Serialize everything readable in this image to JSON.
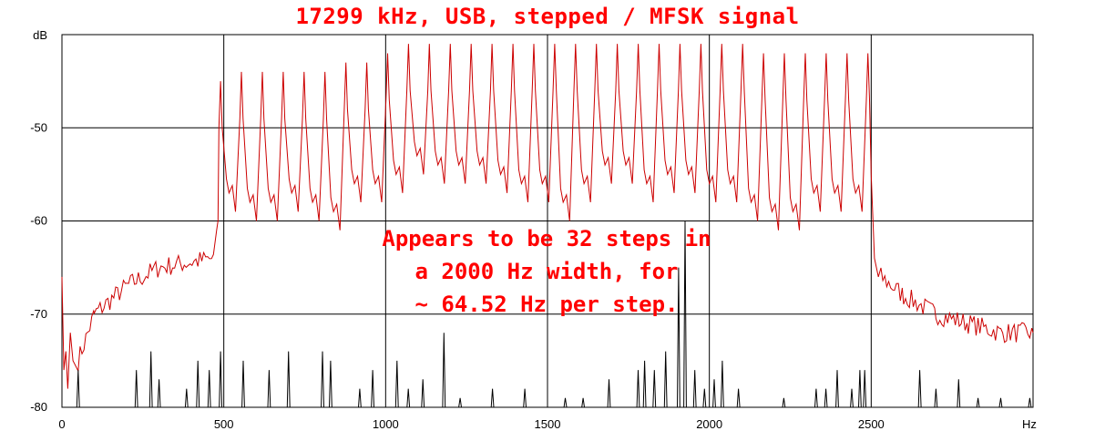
{
  "chart_data": {
    "type": "line",
    "title": "17299 kHz, USB, stepped / MFSK signal",
    "xlabel": "Hz",
    "ylabel": "dB",
    "xlim": [
      0,
      3000
    ],
    "ylim": [
      -80,
      -40
    ],
    "x_ticks": [
      "0",
      "500",
      "1000",
      "1500",
      "2000",
      "2500"
    ],
    "x_tick_values": [
      0,
      500,
      1000,
      1500,
      2000,
      2500
    ],
    "y_ticks": [
      "-50",
      "-60",
      "-70",
      "-80"
    ],
    "y_tick_values": [
      -50,
      -60,
      -70,
      -80
    ],
    "grid": true,
    "annotation": [
      "Appears to be 32 steps in",
      "a 2000 Hz width, for",
      "~ 64.52 Hz per step."
    ],
    "signal_band_hz": [
      490,
      2490
    ],
    "steps": 32,
    "step_spacing_hz": 64.52,
    "series": [
      {
        "color": "#cc0000",
        "peak_hz": [
          490,
          554.5,
          619,
          683.5,
          748,
          812.6,
          877.1,
          941.6,
          1006.1,
          1070.6,
          1135.1,
          1199.6,
          1264.1,
          1328.7,
          1393.2,
          1457.7,
          1522.2,
          1586.7,
          1651.2,
          1715.7,
          1780.3,
          1844.8,
          1909.3,
          1973.8,
          2038.3,
          2102.8,
          2167.3,
          2231.8,
          2296.3,
          2360.9,
          2425.4,
          2489.9
        ],
        "peak_db": [
          -45,
          -44,
          -44,
          -44,
          -44,
          -44,
          -43,
          -43,
          -42,
          -41,
          -41,
          -41,
          -41,
          -41,
          -41,
          -41,
          -41,
          -41,
          -41,
          -41,
          -41,
          -41,
          -41,
          -41,
          -41,
          -41,
          -42,
          -42,
          -42,
          -42,
          -42,
          -42
        ],
        "trough_db": [
          -57,
          -58,
          -58,
          -57,
          -58,
          -59,
          -56,
          -56,
          -55,
          -53,
          -54,
          -54,
          -54,
          -55,
          -56,
          -56,
          -58,
          -56,
          -54,
          -54,
          -56,
          -55,
          -55,
          -56,
          -56,
          -58,
          -59,
          -59,
          -57,
          -57,
          -57
        ],
        "baseline_left": [
          [
            0,
            -76
          ],
          [
            50,
            -75
          ],
          [
            100,
            -70
          ],
          [
            200,
            -67
          ],
          [
            300,
            -65
          ],
          [
            470,
            -64
          ]
        ],
        "baseline_right": [
          [
            2530,
            -66
          ],
          [
            2600,
            -68
          ],
          [
            2700,
            -70
          ],
          [
            2800,
            -71
          ],
          [
            2900,
            -72
          ],
          [
            3000,
            -72
          ]
        ]
      },
      {
        "color": "#000000",
        "noise_peaks": [
          [
            50,
            -76
          ],
          [
            230,
            -76
          ],
          [
            275,
            -74
          ],
          [
            300,
            -77
          ],
          [
            385,
            -78
          ],
          [
            420,
            -75
          ],
          [
            455,
            -76
          ],
          [
            490,
            -74
          ],
          [
            560,
            -75
          ],
          [
            640,
            -76
          ],
          [
            700,
            -74
          ],
          [
            805,
            -74
          ],
          [
            830,
            -75
          ],
          [
            920,
            -78
          ],
          [
            960,
            -76
          ],
          [
            1035,
            -75
          ],
          [
            1070,
            -78
          ],
          [
            1115,
            -77
          ],
          [
            1180,
            -72
          ],
          [
            1230,
            -79
          ],
          [
            1330,
            -78
          ],
          [
            1430,
            -78
          ],
          [
            1555,
            -79
          ],
          [
            1610,
            -79
          ],
          [
            1690,
            -77
          ],
          [
            1780,
            -76
          ],
          [
            1800,
            -75
          ],
          [
            1830,
            -76
          ],
          [
            1865,
            -74
          ],
          [
            1905,
            -65
          ],
          [
            1925,
            -60
          ],
          [
            1955,
            -76
          ],
          [
            1985,
            -78
          ],
          [
            2015,
            -77
          ],
          [
            2040,
            -75
          ],
          [
            2090,
            -78
          ],
          [
            2230,
            -79
          ],
          [
            2330,
            -78
          ],
          [
            2360,
            -78
          ],
          [
            2395,
            -76
          ],
          [
            2440,
            -78
          ],
          [
            2465,
            -76
          ],
          [
            2480,
            -76
          ],
          [
            2650,
            -76
          ],
          [
            2700,
            -78
          ],
          [
            2770,
            -77
          ],
          [
            2830,
            -79
          ],
          [
            2900,
            -79
          ],
          [
            2990,
            -79
          ]
        ]
      }
    ]
  }
}
